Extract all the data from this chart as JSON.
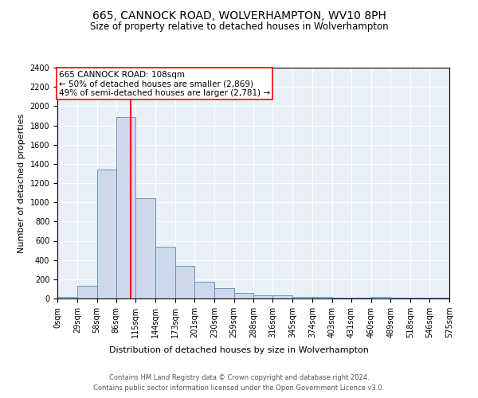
{
  "title1": "665, CANNOCK ROAD, WOLVERHAMPTON, WV10 8PH",
  "title2": "Size of property relative to detached houses in Wolverhampton",
  "xlabel": "Distribution of detached houses by size in Wolverhampton",
  "ylabel": "Number of detached properties",
  "bar_color": "#cdd9ea",
  "bar_edge_color": "#5a8ab5",
  "vline_x": 108,
  "vline_color": "red",
  "ylim": [
    0,
    2400
  ],
  "annotation_title": "665 CANNOCK ROAD: 108sqm",
  "annotation_line1": "← 50% of detached houses are smaller (2,869)",
  "annotation_line2": "49% of semi-detached houses are larger (2,781) →",
  "annotation_box_color": "white",
  "annotation_box_edge_color": "red",
  "footer1": "Contains HM Land Registry data © Crown copyright and database right 2024.",
  "footer2": "Contains public sector information licensed under the Open Government Licence v3.0.",
  "bin_edges": [
    0,
    29,
    58,
    86,
    115,
    144,
    173,
    201,
    230,
    259,
    288,
    316,
    345,
    374,
    403,
    431,
    460,
    489,
    518,
    546,
    575
  ],
  "hist_values": [
    20,
    130,
    1340,
    1890,
    1040,
    540,
    340,
    170,
    110,
    55,
    35,
    30,
    20,
    15,
    5,
    5,
    20,
    5,
    5,
    5
  ],
  "xtick_labels": [
    "0sqm",
    "29sqm",
    "58sqm",
    "86sqm",
    "115sqm",
    "144sqm",
    "173sqm",
    "201sqm",
    "230sqm",
    "259sqm",
    "288sqm",
    "316sqm",
    "345sqm",
    "374sqm",
    "403sqm",
    "431sqm",
    "460sqm",
    "489sqm",
    "518sqm",
    "546sqm",
    "575sqm"
  ],
  "yticks": [
    0,
    200,
    400,
    600,
    800,
    1000,
    1200,
    1400,
    1600,
    1800,
    2000,
    2200,
    2400
  ],
  "title1_fontsize": 10,
  "title2_fontsize": 8.5,
  "xlabel_fontsize": 8,
  "ylabel_fontsize": 8,
  "tick_fontsize": 7,
  "footer_fontsize": 6,
  "annot_fontsize": 7.5
}
